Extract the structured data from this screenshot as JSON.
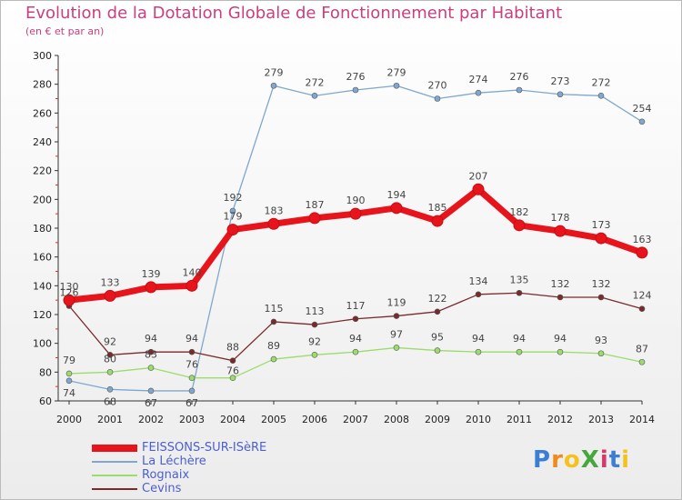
{
  "header": {
    "title": "Evolution de la Dotation Globale de Fonctionnement par Habitant",
    "subtitle": "(en € et par an)"
  },
  "logo": {
    "text": "ProXiti",
    "colors": [
      "#3a7fd5",
      "#f08a1c",
      "#f5c21b",
      "#45a83c",
      "#d63a6a",
      "#3a7fd5",
      "#f5c21b"
    ]
  },
  "chart_data": {
    "type": "line",
    "title": "Evolution de la Dotation Globale de Fonctionnement par Habitant",
    "subtitle": "(en € et par an)",
    "x": [
      "2000",
      "2001",
      "2002",
      "2003",
      "2004",
      "2005",
      "2006",
      "2007",
      "2008",
      "2009",
      "2010",
      "2011",
      "2012",
      "2013",
      "2014"
    ],
    "ylim": [
      60,
      300
    ],
    "yticks": [
      60,
      80,
      100,
      120,
      140,
      160,
      180,
      200,
      220,
      240,
      260,
      280,
      300
    ],
    "grid": false,
    "legend": "bottom-left",
    "series": [
      {
        "name": "FEISSONS-SUR-ISèRE",
        "color": "#e8141b",
        "values": [
          130,
          133,
          139,
          140,
          179,
          183,
          187,
          190,
          194,
          185,
          207,
          182,
          178,
          173,
          163
        ]
      },
      {
        "name": "La Léchère",
        "color": "#7fa7cf",
        "values": [
          74,
          68,
          67,
          67,
          192,
          279,
          272,
          276,
          279,
          270,
          274,
          276,
          273,
          272,
          254
        ]
      },
      {
        "name": "Rognaix",
        "color": "#9cdc6c",
        "values": [
          79,
          80,
          83,
          76,
          76,
          89,
          92,
          94,
          97,
          95,
          94,
          94,
          94,
          93,
          87
        ]
      },
      {
        "name": "Cevins",
        "color": "#7a2a2a",
        "values": [
          126,
          92,
          94,
          94,
          88,
          115,
          113,
          117,
          119,
          122,
          134,
          135,
          132,
          132,
          124
        ]
      }
    ]
  }
}
